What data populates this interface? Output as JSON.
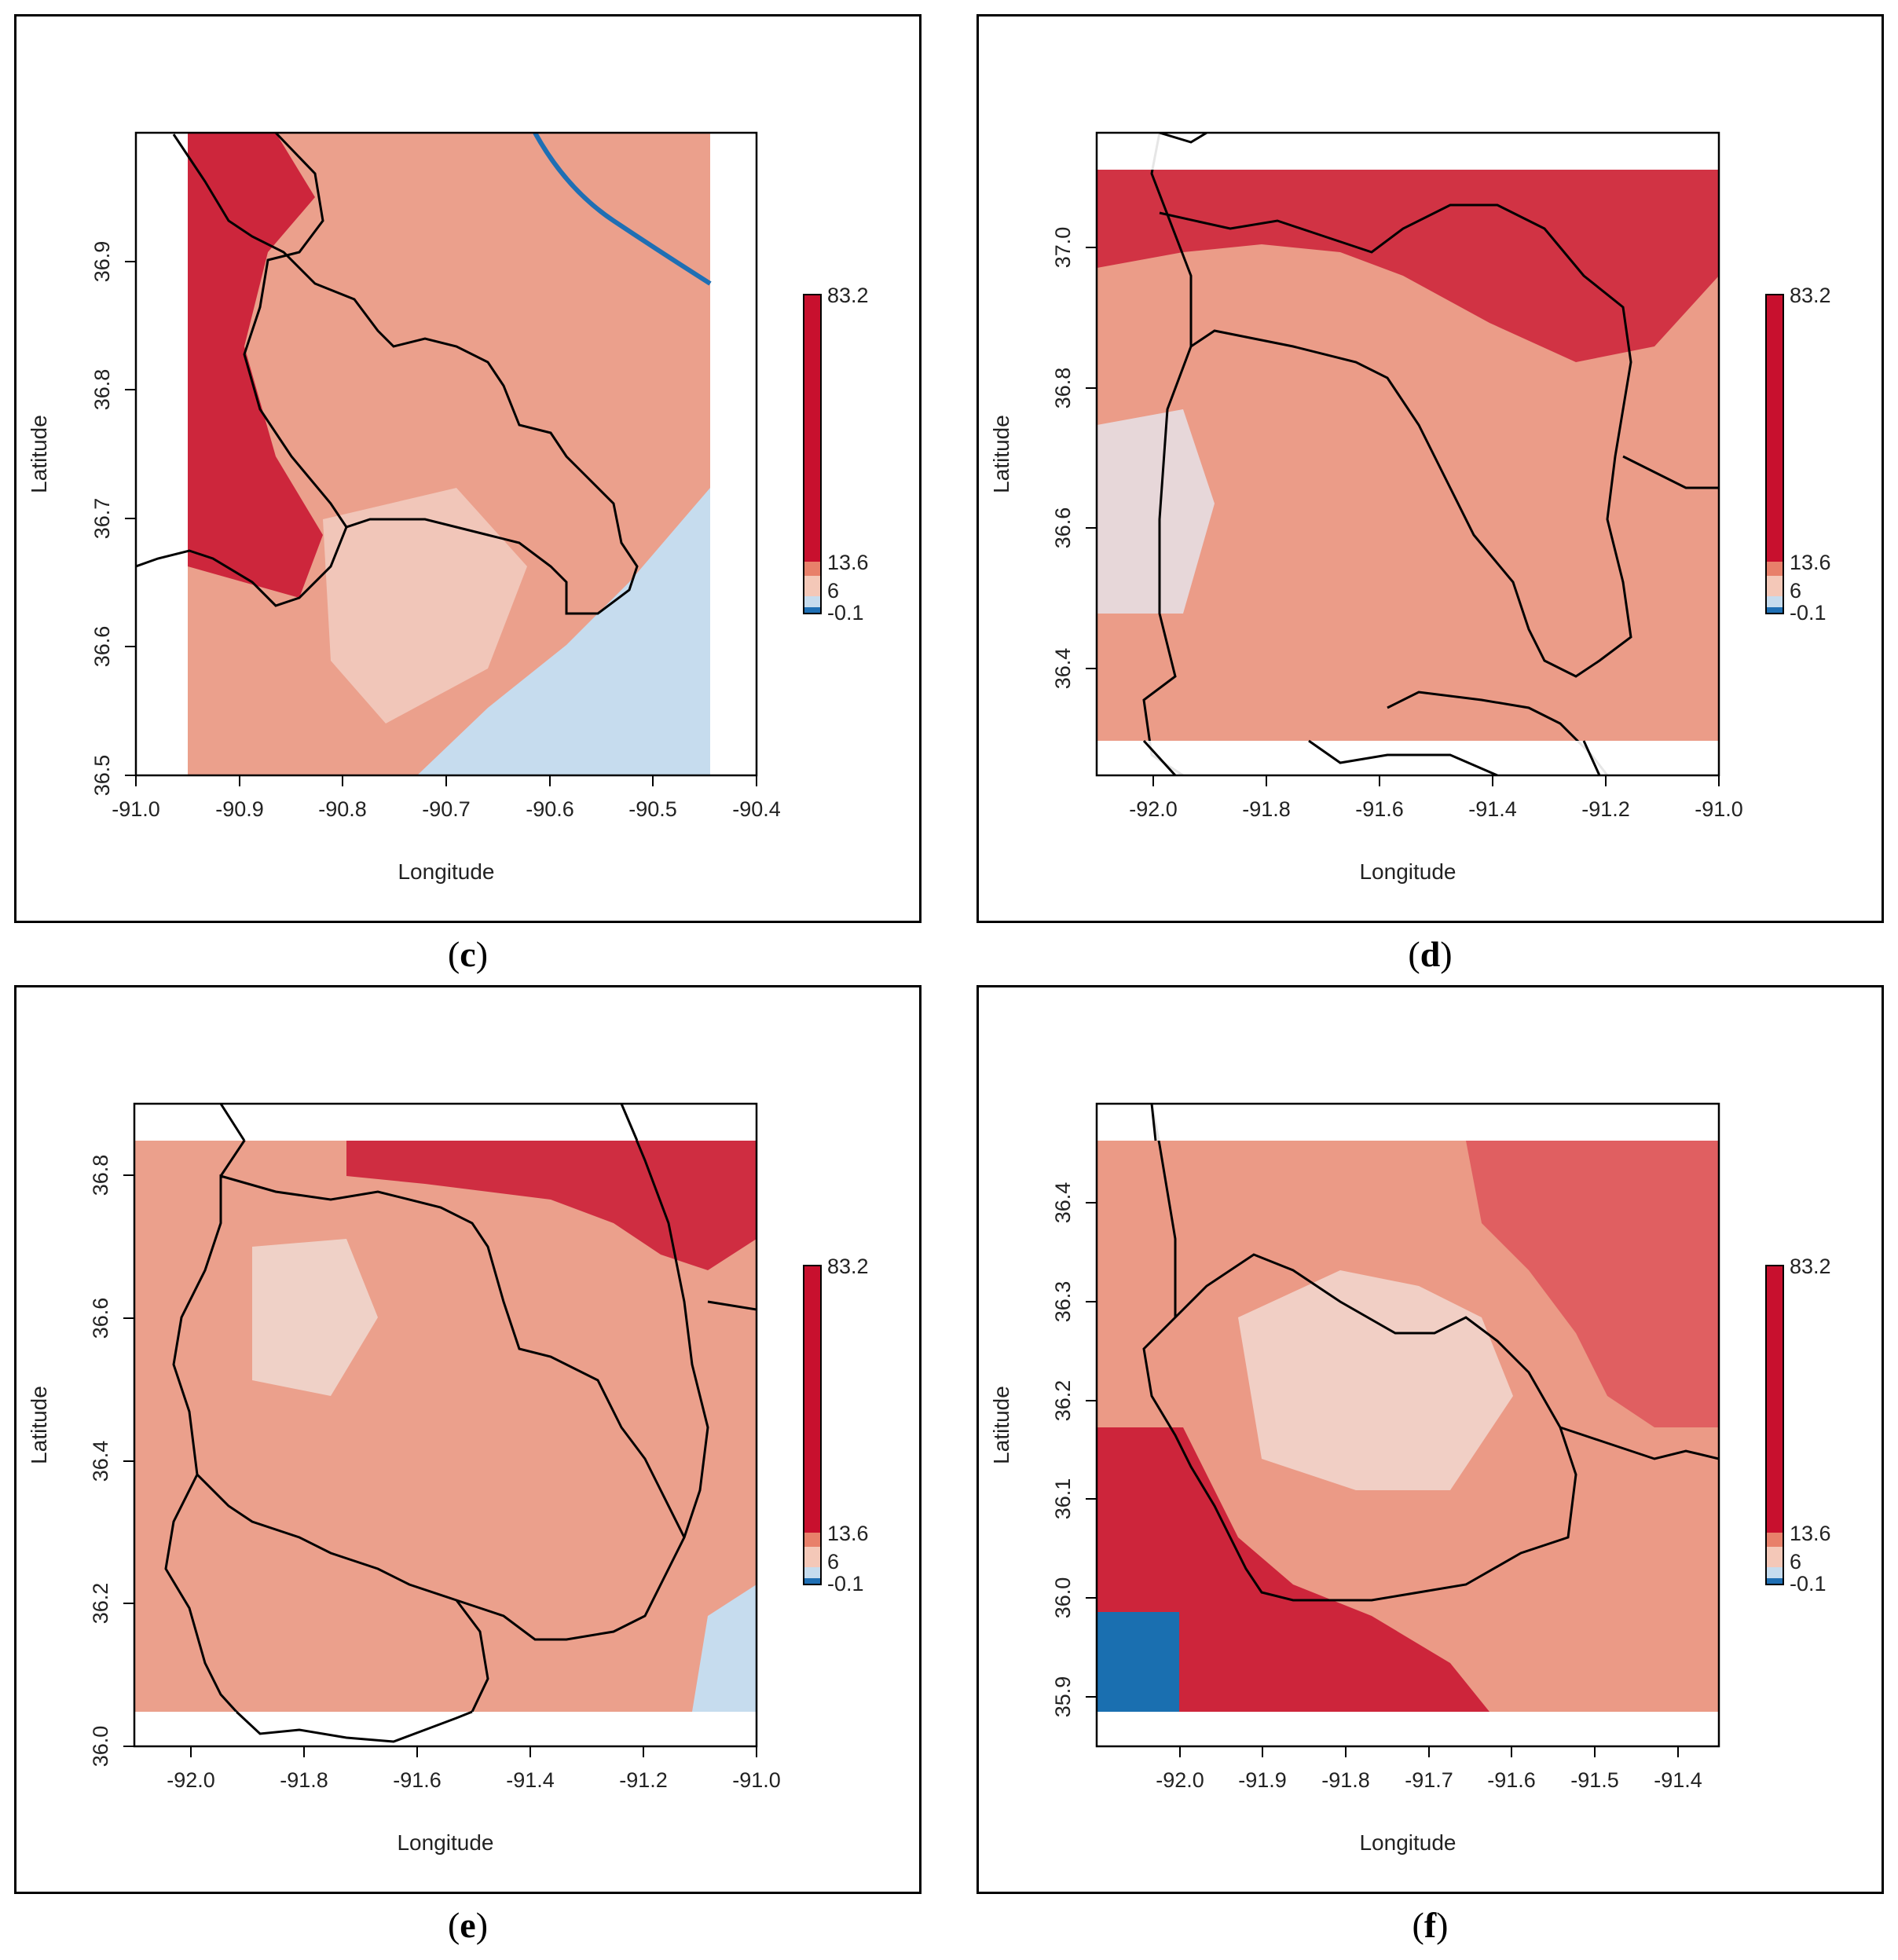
{
  "figure": {
    "panels": [
      {
        "id": "c",
        "caption": "c"
      },
      {
        "id": "d",
        "caption": "d"
      },
      {
        "id": "e",
        "caption": "e"
      },
      {
        "id": "f",
        "caption": "f"
      }
    ]
  },
  "colors": {
    "high": "#c8102e",
    "mid_high": "#e8806a",
    "mid": "#f4c8b8",
    "low": "#d6e6f2",
    "lowest": "#1f6fb4",
    "boundary": "#000000",
    "nodata": "#ffffff"
  },
  "chart_data": [
    {
      "type": "heatmap",
      "panel": "c",
      "xlabel": "Longitude",
      "ylabel": "Latitude",
      "xlim": [
        -91.0,
        -90.4
      ],
      "ylim": [
        36.5,
        37.0
      ],
      "xticks": [
        "-91.0",
        "-90.9",
        "-90.8",
        "-90.7",
        "-90.6",
        "-90.5",
        "-90.4"
      ],
      "yticks": [
        "36.5",
        "36.6",
        "36.7",
        "36.8",
        "36.9"
      ],
      "raster_extent": {
        "lon": [
          -90.95,
          -90.45
        ],
        "lat": [
          36.5,
          37.0
        ]
      },
      "legend": {
        "max": "83.2",
        "break": "13.6",
        "mid": "6",
        "min": "-0.1",
        "placement": "right"
      }
    },
    {
      "type": "heatmap",
      "panel": "d",
      "xlabel": "Longitude",
      "ylabel": "Latitude",
      "xlim": [
        -92.1,
        -91.0
      ],
      "ylim": [
        36.25,
        37.15
      ],
      "xticks": [
        "-92.0",
        "-91.8",
        "-91.6",
        "-91.4",
        "-91.2",
        "-91.0"
      ],
      "yticks": [
        "36.4",
        "36.6",
        "36.8",
        "37.0"
      ],
      "raster_extent": {
        "lon": [
          -92.1,
          -91.0
        ],
        "lat": [
          36.3,
          37.1
        ]
      },
      "legend": {
        "max": "83.2",
        "break": "13.6",
        "mid": "6",
        "min": "-0.1",
        "placement": "right"
      }
    },
    {
      "type": "heatmap",
      "panel": "e",
      "xlabel": "Longitude",
      "ylabel": "Latitude",
      "xlim": [
        -92.1,
        -91.0
      ],
      "ylim": [
        36.0,
        36.9
      ],
      "xticks": [
        "-92.0",
        "-91.8",
        "-91.6",
        "-91.4",
        "-91.2",
        "-91.0"
      ],
      "yticks": [
        "36.0",
        "36.2",
        "36.4",
        "36.6",
        "36.8"
      ],
      "raster_extent": {
        "lon": [
          -92.1,
          -91.0
        ],
        "lat": [
          36.05,
          36.85
        ]
      },
      "legend": {
        "max": "83.2",
        "break": "13.6",
        "mid": "6",
        "min": "-0.1",
        "placement": "right"
      }
    },
    {
      "type": "heatmap",
      "panel": "f",
      "xlabel": "Longitude",
      "ylabel": "Latitude",
      "xlim": [
        -92.1,
        -91.35
      ],
      "ylim": [
        35.85,
        36.5
      ],
      "xticks": [
        "-92.0",
        "-91.9",
        "-91.8",
        "-91.7",
        "-91.6",
        "-91.5",
        "-91.4"
      ],
      "yticks": [
        "35.9",
        "36.0",
        "36.1",
        "36.2",
        "36.3",
        "36.4"
      ],
      "raster_extent": {
        "lon": [
          -92.1,
          -91.35
        ],
        "lat": [
          35.9,
          36.45
        ]
      },
      "legend": {
        "max": "83.2",
        "break": "13.6",
        "mid": "6",
        "min": "-0.1",
        "placement": "right"
      }
    }
  ]
}
